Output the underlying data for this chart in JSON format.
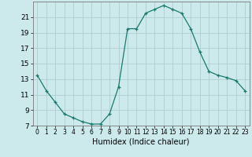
{
  "x": [
    0,
    1,
    2,
    3,
    4,
    5,
    6,
    7,
    8,
    9,
    10,
    11,
    12,
    13,
    14,
    15,
    16,
    17,
    18,
    19,
    20,
    21,
    22,
    23
  ],
  "y": [
    13.5,
    11.5,
    10.0,
    8.5,
    8.0,
    7.5,
    7.2,
    7.2,
    8.5,
    12.0,
    19.5,
    19.5,
    21.5,
    22.0,
    22.5,
    22.0,
    21.5,
    19.5,
    16.5,
    14.0,
    13.5,
    13.2,
    12.8,
    11.5
  ],
  "xlabel": "Humidex (Indice chaleur)",
  "ylabel": "",
  "xlim": [
    -0.5,
    23.5
  ],
  "ylim": [
    7,
    23
  ],
  "yticks": [
    7,
    9,
    11,
    13,
    15,
    17,
    19,
    21
  ],
  "xticks": [
    0,
    1,
    2,
    3,
    4,
    5,
    6,
    7,
    8,
    9,
    10,
    11,
    12,
    13,
    14,
    15,
    16,
    17,
    18,
    19,
    20,
    21,
    22,
    23
  ],
  "bg_color": "#cce9ec",
  "line_color": "#1a7a6e",
  "marker": "+",
  "grid_color": "#b0ced2",
  "xlabel_fontsize": 7,
  "tick_fontsize": 6.5
}
